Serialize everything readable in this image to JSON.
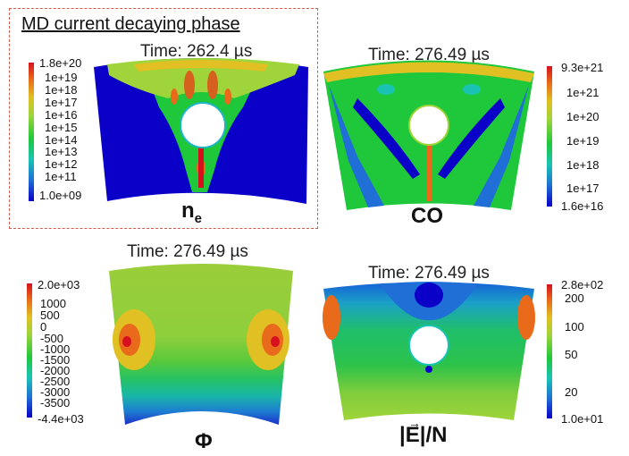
{
  "phase_title": "MD current decaying phase",
  "panels": {
    "ne": {
      "time": "Time: 262.4 µs",
      "label_main": "n",
      "label_sub": "e",
      "colorbar_ticks": [
        "1.8e+20",
        "1e+19",
        "1e+18",
        "1e+17",
        "1e+16",
        "1e+15",
        "1e+14",
        "1e+13",
        "1e+12",
        "1e+11",
        "1.0e+09"
      ]
    },
    "co": {
      "time": "Time: 276.49 µs",
      "label": "CO",
      "colorbar_ticks": [
        "9.3e+21",
        "1e+21",
        "1e+20",
        "1e+19",
        "1e+18",
        "1e+17",
        "1.6e+16"
      ]
    },
    "phi": {
      "time": "Time: 276.49 µs",
      "label": "Φ",
      "colorbar_ticks": [
        "2.0e+03",
        "1000",
        "500",
        "0",
        "-500",
        "-1000",
        "-1500",
        "-2000",
        "-2500",
        "-3000",
        "-3500",
        "-4.4e+03"
      ]
    },
    "e": {
      "time": "Time: 276.49 µs",
      "label_text": "|E|/N",
      "colorbar_ticks": [
        "2.8e+02",
        "200",
        "100",
        "50",
        "20",
        "1.0e+01"
      ]
    }
  },
  "colors": {
    "dashed_border": "#d45a4a",
    "colormap": [
      "#0a00c8",
      "#1f6fd6",
      "#19c3b4",
      "#1ec83a",
      "#9fd43a",
      "#e0c023",
      "#e86a1a",
      "#d6101e"
    ]
  }
}
